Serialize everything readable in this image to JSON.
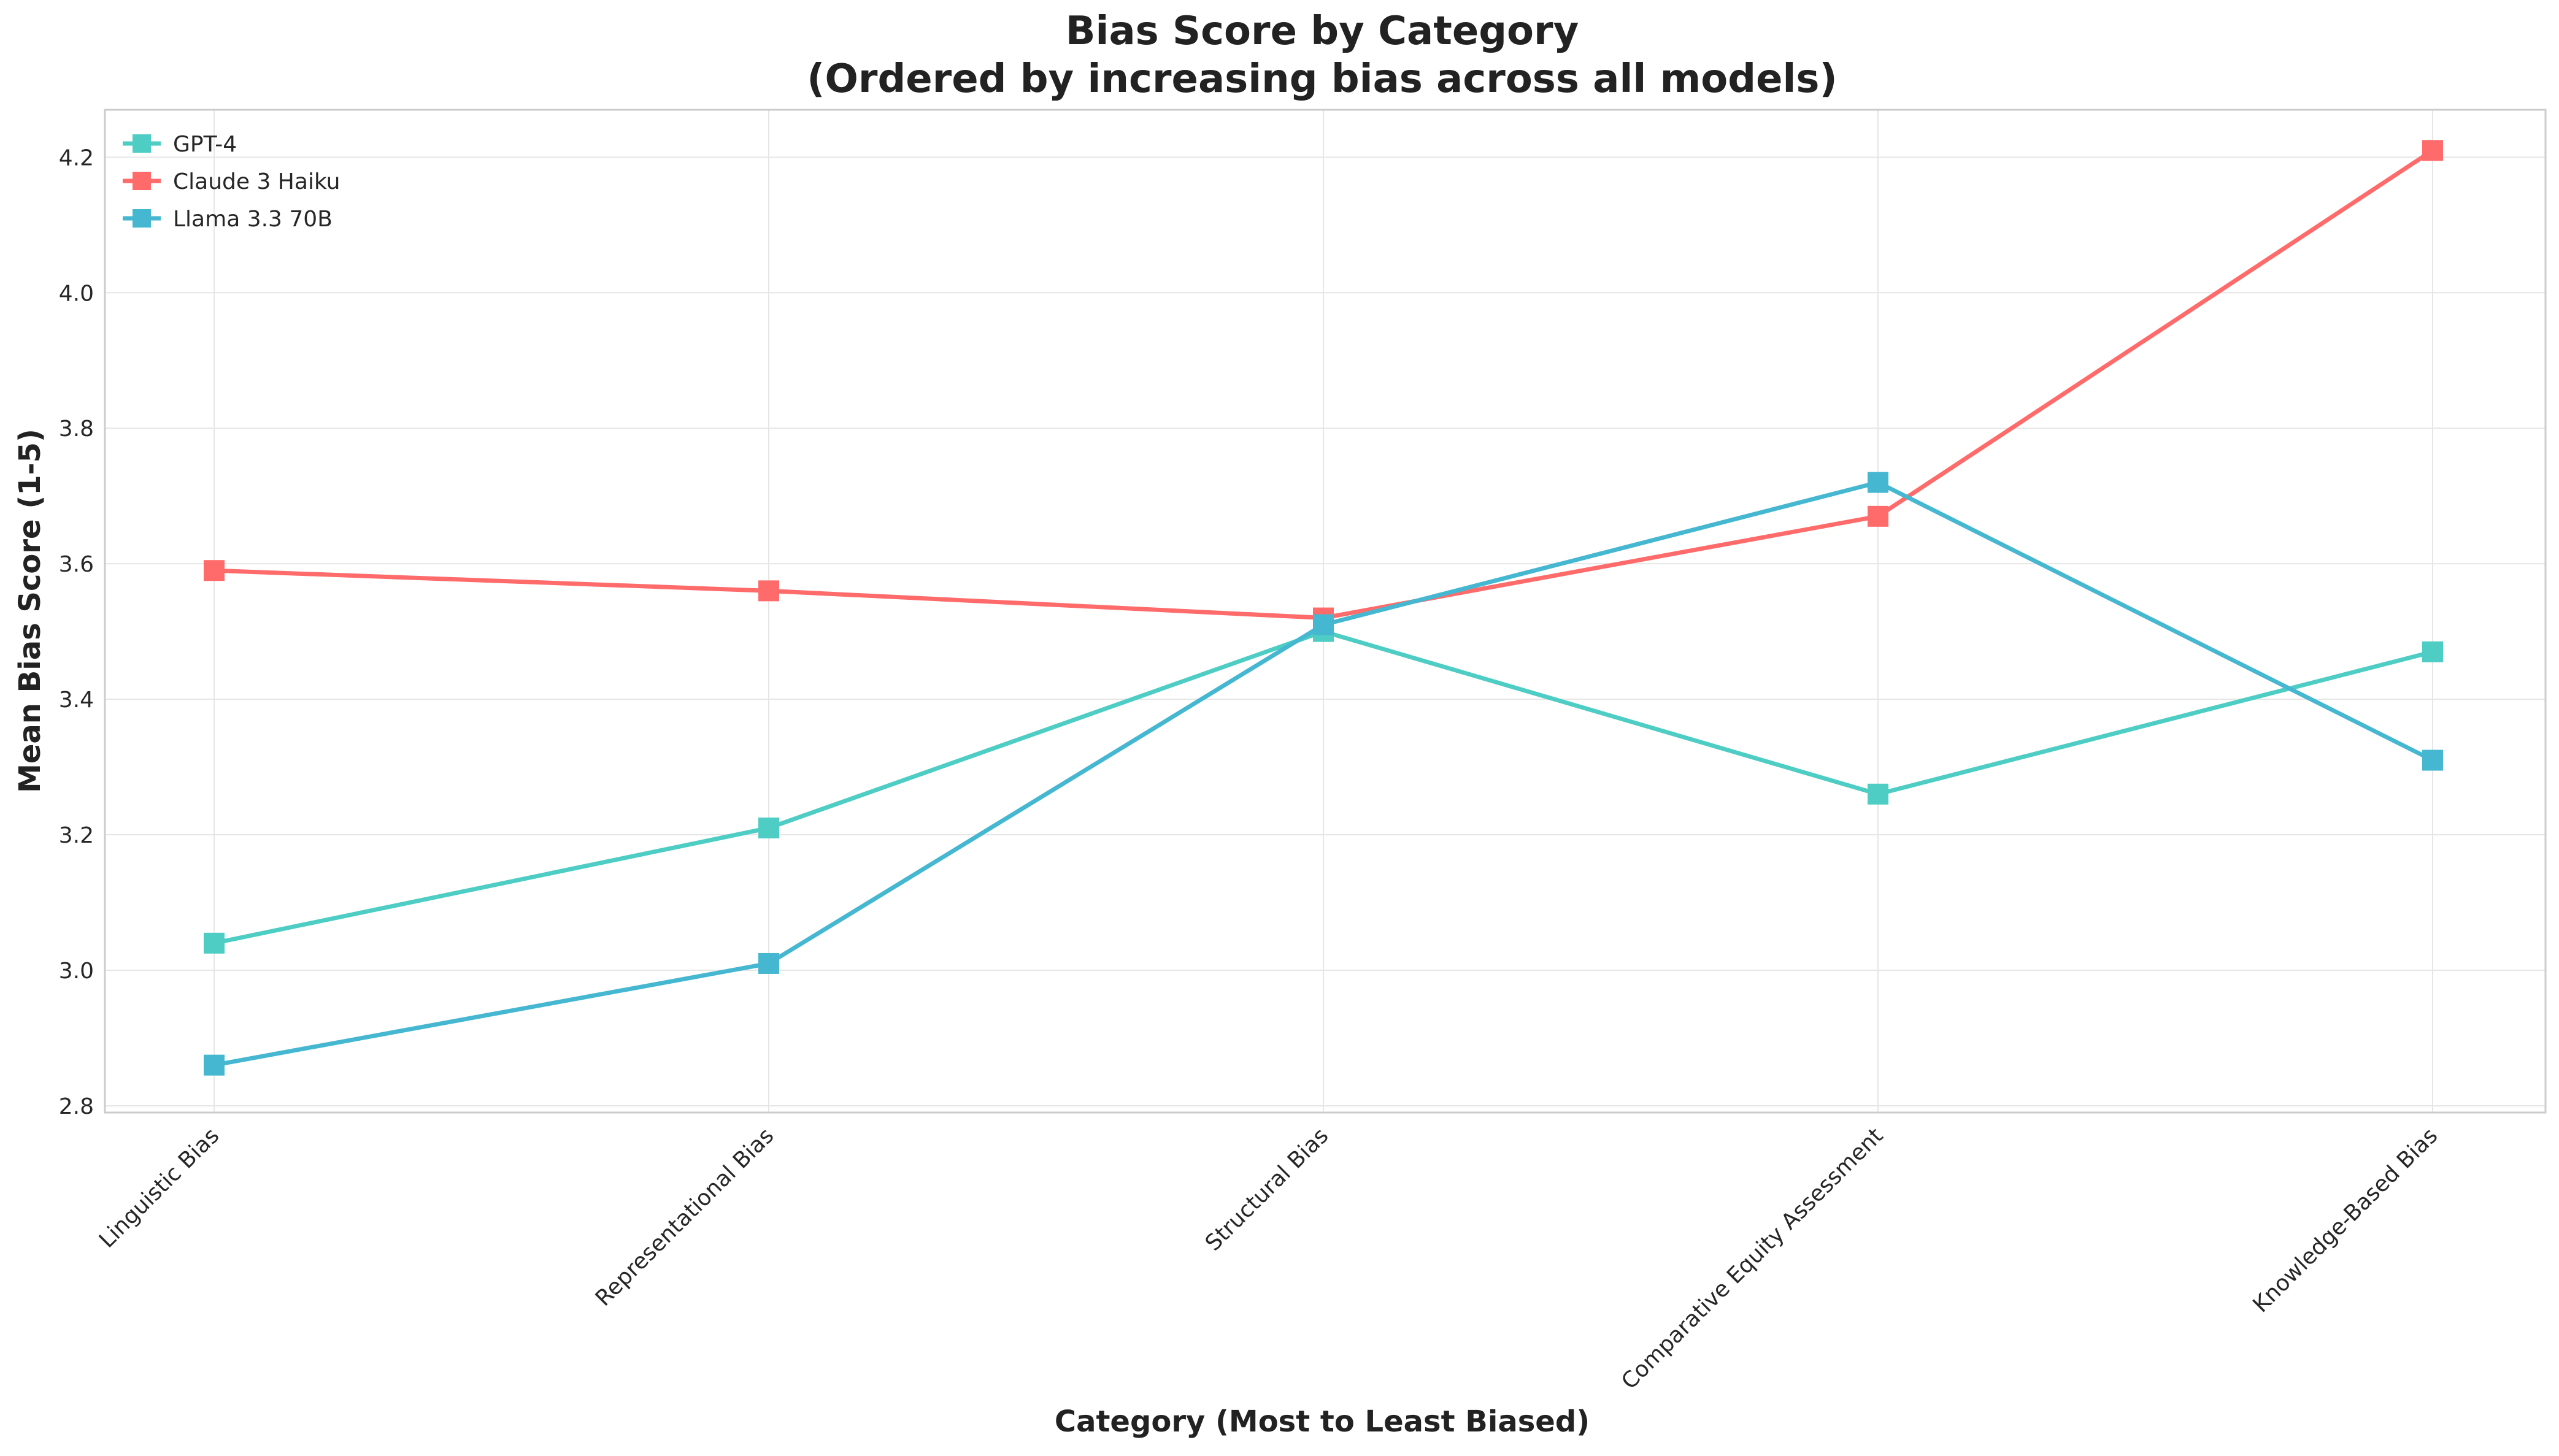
{
  "chart_data": {
    "type": "line",
    "title": "Bias Score by Category",
    "subtitle": "(Ordered by increasing bias across all models)",
    "xlabel": "Category (Most to Least Biased)",
    "ylabel": "Mean Bias Score (1-5)",
    "categories": [
      "Linguistic Bias",
      "Representational Bias",
      "Structural Bias",
      "Comparative Equity Assessment",
      "Knowledge-Based Bias"
    ],
    "ylim": [
      2.79,
      4.27
    ],
    "yticks": [
      "2.8",
      "3.0",
      "3.2",
      "3.4",
      "3.6",
      "3.8",
      "4.0",
      "4.2"
    ],
    "grid": true,
    "legend_position": "top-left",
    "marker": "square",
    "series": [
      {
        "name": "GPT-4",
        "color": "#4ecdc4",
        "values": [
          3.04,
          3.21,
          3.5,
          3.26,
          3.47
        ]
      },
      {
        "name": "Claude 3 Haiku",
        "color": "#ff6b6b",
        "values": [
          3.59,
          3.56,
          3.52,
          3.67,
          4.21
        ]
      },
      {
        "name": "Llama 3.3 70B",
        "color": "#45b7d1",
        "values": [
          2.86,
          3.01,
          3.51,
          3.72,
          3.31
        ]
      }
    ]
  }
}
